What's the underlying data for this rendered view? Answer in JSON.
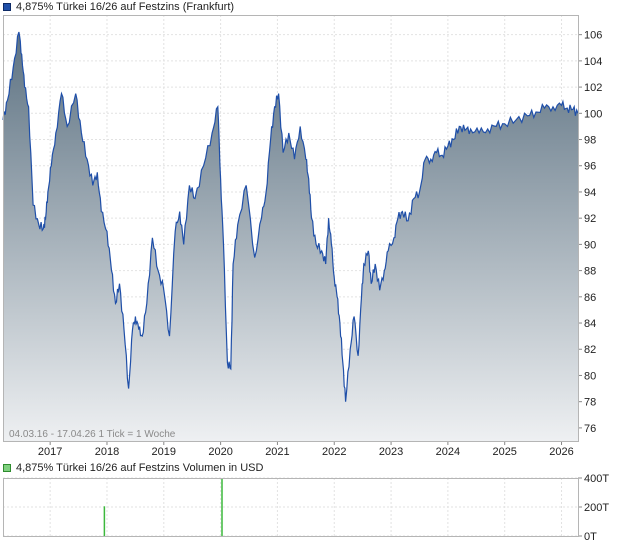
{
  "chart_data": [
    {
      "type": "area",
      "title": "4,875% Türkei 16/26 auf Festzins (Frankfurt)",
      "series_color": "#1f4fa8",
      "fill_top_color": "#5d7282",
      "fill_bottom_color": "#eef0f2",
      "x_tick_labels": [
        "2017",
        "2018",
        "2019",
        "2020",
        "2021",
        "2022",
        "2023",
        "2024",
        "2025",
        "2026"
      ],
      "y_tick_labels": [
        "106",
        "104",
        "102",
        "100",
        "98",
        "96",
        "94",
        "92",
        "90",
        "88",
        "86",
        "84",
        "82",
        "80",
        "78",
        "76"
      ],
      "xlim": [
        2016.17,
        2026.29
      ],
      "ylim": [
        75.0,
        107.5
      ],
      "grid": true,
      "info_text": "04.03.16 - 17.04.26   1 Tick = 1 Woche",
      "x": [
        2016.17,
        2016.25,
        2016.35,
        2016.45,
        2016.5,
        2016.55,
        2016.62,
        2016.7,
        2016.8,
        2016.88,
        2016.92,
        2016.96,
        2017.02,
        2017.1,
        2017.2,
        2017.3,
        2017.45,
        2017.55,
        2017.65,
        2017.75,
        2017.83,
        2017.9,
        2018.0,
        2018.08,
        2018.15,
        2018.22,
        2018.3,
        2018.38,
        2018.45,
        2018.5,
        2018.56,
        2018.62,
        2018.7,
        2018.8,
        2018.9,
        2019.0,
        2019.1,
        2019.2,
        2019.28,
        2019.35,
        2019.45,
        2019.55,
        2019.7,
        2019.85,
        2019.95,
        2020.0,
        2020.05,
        2020.12,
        2020.18,
        2020.22,
        2020.3,
        2020.45,
        2020.6,
        2020.72,
        2020.8,
        2020.88,
        2020.95,
        2021.02,
        2021.1,
        2021.2,
        2021.3,
        2021.4,
        2021.5,
        2021.55,
        2021.6,
        2021.68,
        2021.78,
        2021.85,
        2021.9,
        2021.95,
        2022.0,
        2022.05,
        2022.1,
        2022.15,
        2022.2,
        2022.28,
        2022.35,
        2022.42,
        2022.48,
        2022.52,
        2022.6,
        2022.65,
        2022.72,
        2022.8,
        2022.88,
        2022.95,
        2023.05,
        2023.12,
        2023.2,
        2023.3,
        2023.4,
        2023.5,
        2023.6,
        2023.7,
        2023.8,
        2023.9,
        2024.0,
        2024.1,
        2024.2,
        2024.3,
        2024.4,
        2024.55,
        2024.7,
        2024.85,
        2025.0,
        2025.2,
        2025.4,
        2025.55,
        2025.7,
        2025.85,
        2026.0,
        2026.1,
        2026.2,
        2026.29
      ],
      "values": [
        99.5,
        101.0,
        103.5,
        106.2,
        104.5,
        102.0,
        100.5,
        93.0,
        91.5,
        91.2,
        92.0,
        94.0,
        96.0,
        98.5,
        101.5,
        99.0,
        101.5,
        98.5,
        96.5,
        94.5,
        95.5,
        92.5,
        91.0,
        88.0,
        85.5,
        87.0,
        83.5,
        79.0,
        83.5,
        84.5,
        83.5,
        83.0,
        85.5,
        90.5,
        88.0,
        86.5,
        83.0,
        91.0,
        92.5,
        90.0,
        94.5,
        93.5,
        96.0,
        98.5,
        100.5,
        95.0,
        90.0,
        81.0,
        80.5,
        88.5,
        91.5,
        94.5,
        89.0,
        92.0,
        94.0,
        98.0,
        100.5,
        101.5,
        97.0,
        98.5,
        96.5,
        99.0,
        96.5,
        95.0,
        92.0,
        90.0,
        89.5,
        88.5,
        92.0,
        90.0,
        87.5,
        86.0,
        84.0,
        81.0,
        78.0,
        82.0,
        84.5,
        81.5,
        86.0,
        88.5,
        89.5,
        87.0,
        88.5,
        86.5,
        88.0,
        89.5,
        90.5,
        92.0,
        92.5,
        91.8,
        93.5,
        94.0,
        96.5,
        96.5,
        97.0,
        96.8,
        97.5,
        98.0,
        99.0,
        98.7,
        98.8,
        98.5,
        98.8,
        99.0,
        99.2,
        99.5,
        99.8,
        100.1,
        100.4,
        100.5,
        100.6,
        100.4,
        100.3,
        100.0
      ]
    },
    {
      "type": "bar",
      "title": "4,875% Türkei 16/26 auf Festzins Volumen in USD",
      "series_color": "#3cb83c",
      "y_tick_labels": [
        "400T",
        "200T",
        "0T"
      ],
      "ylim": [
        0,
        400
      ],
      "grid": true,
      "x": [
        2017.95,
        2020.02
      ],
      "values": [
        205,
        410
      ]
    }
  ]
}
